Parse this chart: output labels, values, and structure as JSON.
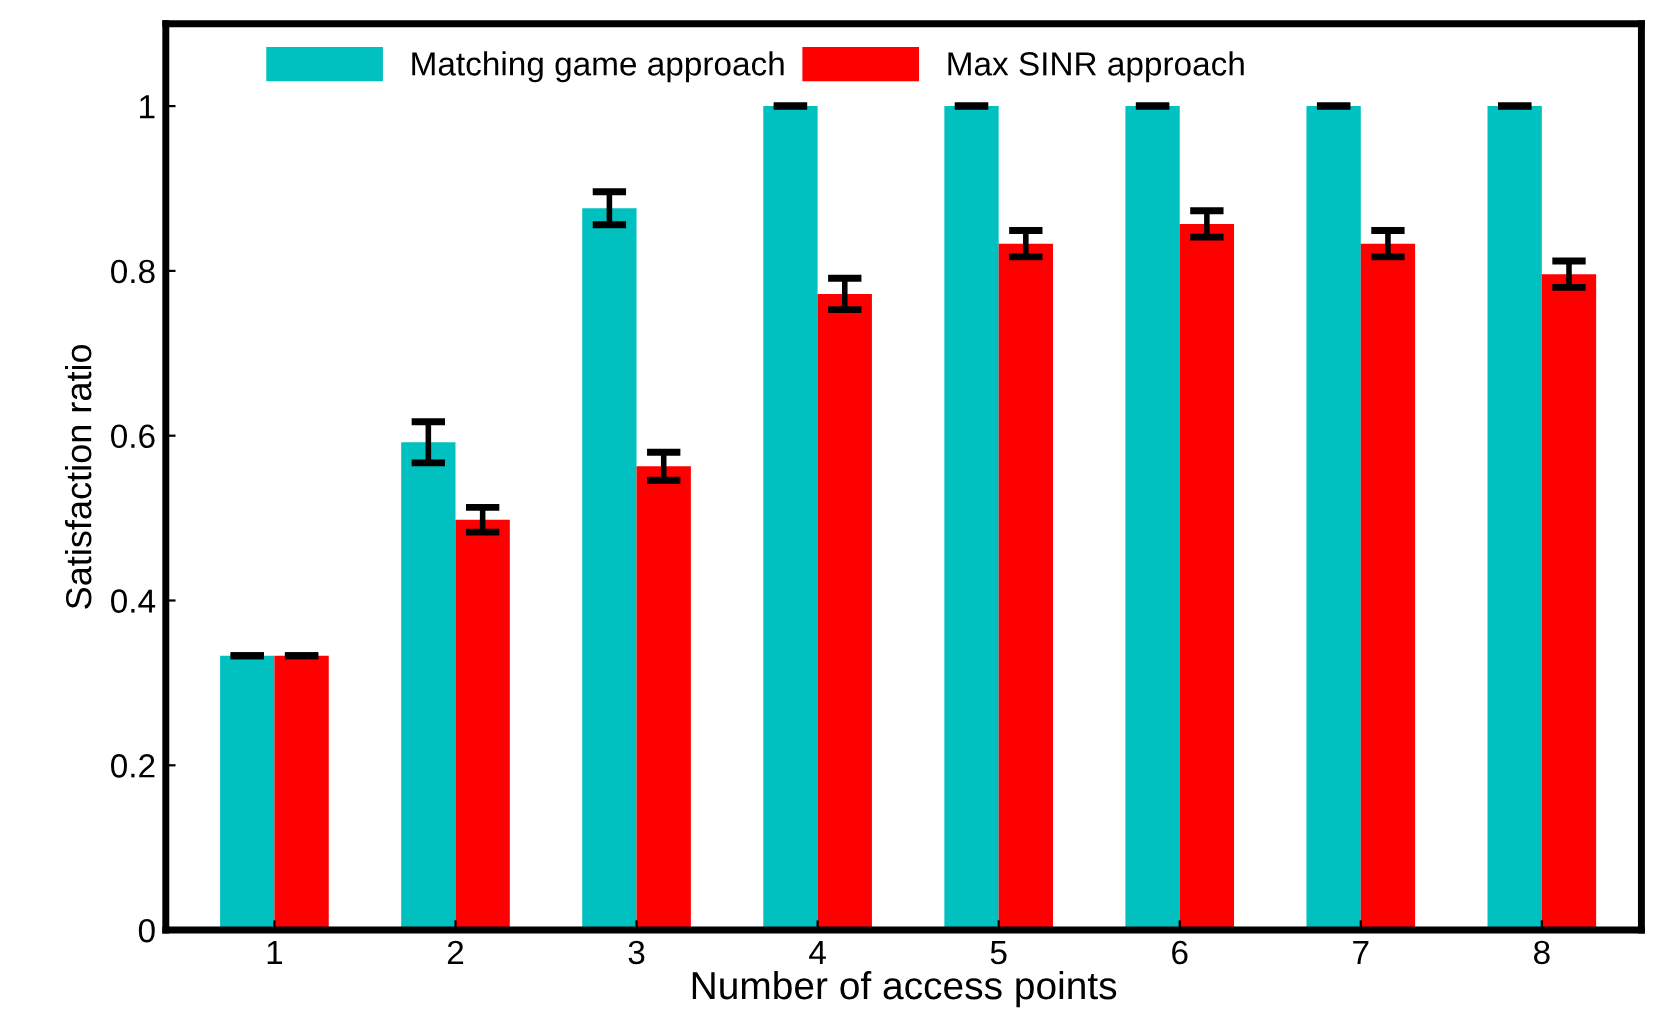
{
  "chart_data": {
    "type": "bar",
    "xlabel": "Number of access points",
    "ylabel": "Satisfaction ratio",
    "categories": [
      "1",
      "2",
      "3",
      "4",
      "5",
      "6",
      "7",
      "8"
    ],
    "series": [
      {
        "name": "Matching game approach",
        "color": "#00c0c0",
        "values": [
          0.333,
          0.592,
          0.876,
          1,
          1,
          1,
          1,
          1
        ],
        "errors": [
          0,
          0.025,
          0.02,
          0,
          0,
          0,
          0,
          0
        ]
      },
      {
        "name": "Max SINR approach",
        "color": "#ff0000",
        "values": [
          0.333,
          0.498,
          0.563,
          0.772,
          0.833,
          0.857,
          0.833,
          0.796
        ],
        "errors": [
          0,
          0.015,
          0.017,
          0.019,
          0.016,
          0.016,
          0.016,
          0.016
        ]
      }
    ],
    "ylim": [
      0,
      1.1
    ],
    "yticks": [
      0,
      0.2,
      0.4,
      0.6,
      0.8,
      1
    ],
    "grid": false,
    "legend": "top"
  }
}
